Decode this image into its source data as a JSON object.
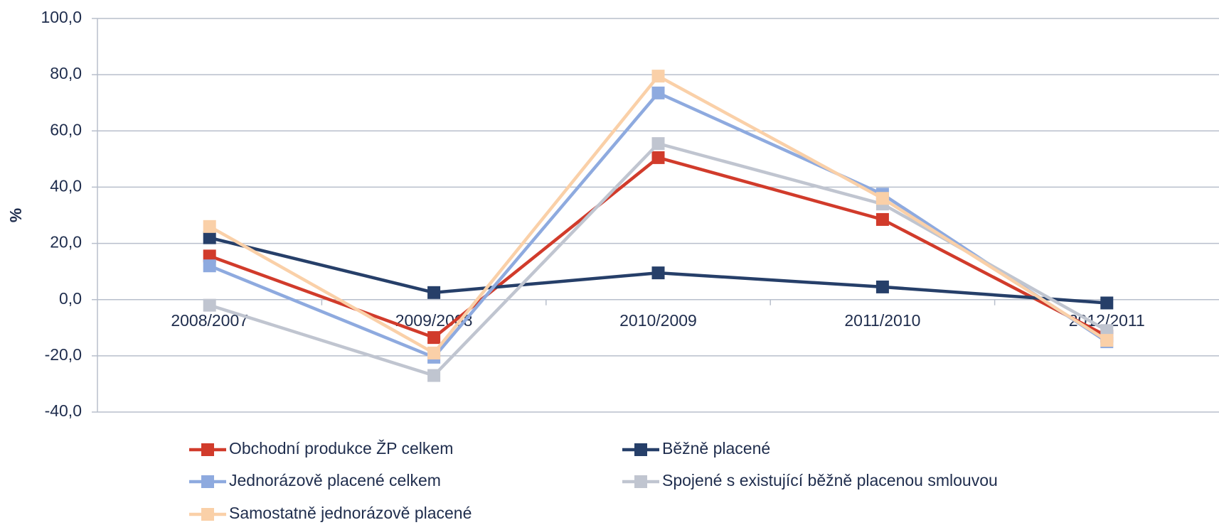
{
  "chart_data": {
    "type": "line",
    "y_label": "%",
    "categories": [
      "2008/2007",
      "2009/2008",
      "2010/2009",
      "2011/2010",
      "2012/2011"
    ],
    "series": [
      {
        "name": "Obchodní produkce ŽP celkem",
        "color": "#d13b2b",
        "values": [
          15.5,
          -13.5,
          50.5,
          28.5,
          -13
        ]
      },
      {
        "name": "Běžně placené",
        "color": "#263f69",
        "values": [
          22,
          2.5,
          9.5,
          4.5,
          -1.2
        ]
      },
      {
        "name": "Jednorázově placené celkem",
        "color": "#8eaadf",
        "values": [
          12,
          -20.5,
          73.5,
          37.5,
          -15
        ]
      },
      {
        "name": "Spojené s existující běžně placenou smlouvou",
        "color": "#c0c5d0",
        "values": [
          -2,
          -27,
          55.5,
          34,
          -11
        ]
      },
      {
        "name": "Samostatně jednorázově placené",
        "color": "#fad0a8",
        "values": [
          26,
          -19,
          79.5,
          36,
          -14.5
        ]
      }
    ],
    "ylim": [
      -40,
      100
    ],
    "yticks": [
      {
        "value": -40,
        "label": "-40,0"
      },
      {
        "value": -20,
        "label": "-20,0"
      },
      {
        "value": 0,
        "label": "0,0"
      },
      {
        "value": 20,
        "label": "20,0"
      },
      {
        "value": 40,
        "label": "40,0"
      },
      {
        "value": 60,
        "label": "60,0"
      },
      {
        "value": 80,
        "label": "80,0"
      },
      {
        "value": 100,
        "label": "100,0"
      }
    ],
    "grid": true
  }
}
